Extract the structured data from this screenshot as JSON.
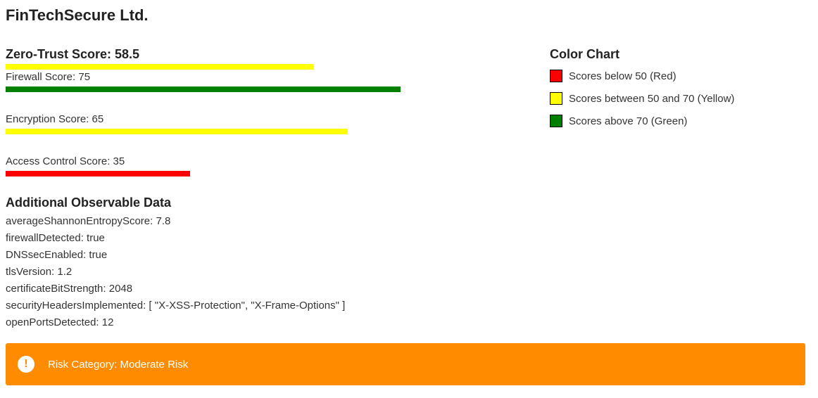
{
  "company": {
    "name": "FinTechSecure Ltd."
  },
  "zero_trust": {
    "label": "Zero-Trust Score: 58.5",
    "score": 58.5,
    "color": "#ffff00"
  },
  "metrics": [
    {
      "label": "Firewall Score: 75",
      "score": 75,
      "color": "#008000"
    },
    {
      "label": "Encryption Score: 65",
      "score": 65,
      "color": "#ffff00"
    },
    {
      "label": "Access Control Score: 35",
      "score": 35,
      "color": "#ff0000"
    }
  ],
  "observable": {
    "title": "Additional Observable Data",
    "rows": [
      "averageShannonEntropyScore: 7.8",
      "firewallDetected: true",
      "DNSsecEnabled: true",
      "tlsVersion: 1.2",
      "certificateBitStrength: 2048",
      "securityHeadersImplemented: [ \"X-XSS-Protection\", \"X-Frame-Options\" ]",
      "openPortsDetected: 12"
    ]
  },
  "legend": {
    "title": "Color Chart",
    "items": [
      {
        "label": "Scores below 50 (Red)",
        "color": "#ff0000"
      },
      {
        "label": "Scores between 50 and 70 (Yellow)",
        "color": "#ffff00"
      },
      {
        "label": "Scores above 70 (Green)",
        "color": "#008000"
      }
    ]
  },
  "risk": {
    "icon": "exclamation-circle-icon",
    "icon_glyph": "!",
    "label": "Risk Category: Moderate Risk",
    "color": "#ff8c00"
  }
}
